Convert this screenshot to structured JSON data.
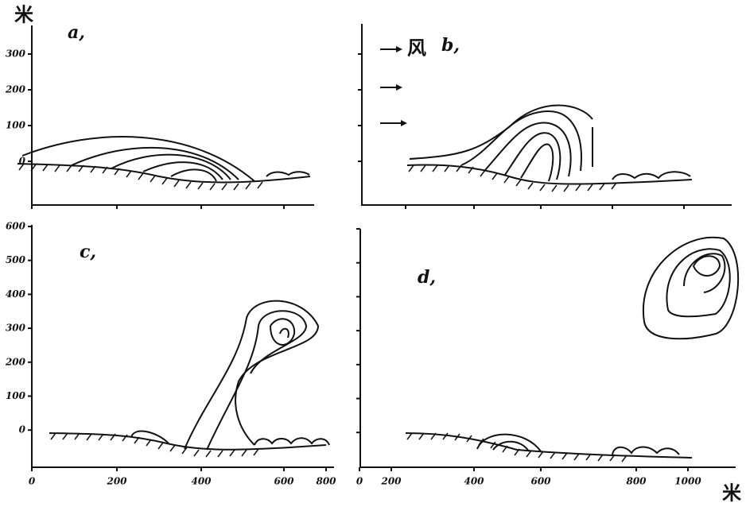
{
  "unit_top": "米",
  "unit_bottom": "米",
  "panels": [
    {
      "label": "a,",
      "y_ticks": [
        "300",
        "200",
        "100",
        "0"
      ]
    },
    {
      "label": "b,",
      "wind": "风"
    },
    {
      "label": "c,",
      "y_ticks": [
        "600",
        "500",
        "400",
        "300",
        "200",
        "100",
        "0"
      ]
    },
    {
      "label": "d,"
    }
  ],
  "x_axes": [
    {
      "ticks": [
        "0",
        "200",
        "400",
        "600",
        "800"
      ]
    },
    {
      "ticks": [
        "0",
        "200",
        "400",
        "600",
        "800",
        "1000"
      ]
    }
  ]
}
